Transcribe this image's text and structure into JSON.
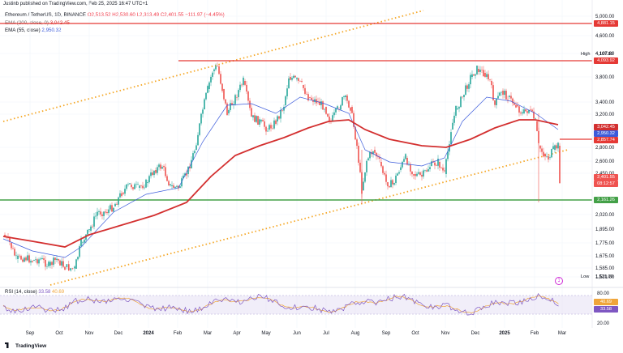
{
  "header": {
    "published": "Justinb published on TradingView.com, Feb 25, 2025 16:47 UTC+1"
  },
  "legend": {
    "symbol": "Ethereum / TetherUS, 1D, BINANCE",
    "ohlc": "O2,513.52 H2,530.60 L2,313.49 C2,401.55 −111.97 (−4.45%)",
    "ema200": "EMA (200, close, 0)",
    "ema200_value": "3,042.45",
    "ema55": "EMA (55, close)",
    "ema55_value": "2,950.32"
  },
  "rsi": {
    "label": "RSI (14, close)",
    "value1": "33.58",
    "value2": "40.69"
  },
  "price_axis": [
    "5,000.00",
    "4,600.00",
    "4,107.80",
    "3,800.00",
    "3,400.00",
    "3,200.00",
    "2,800.00",
    "2,600.00",
    "2,450.00",
    "2,020.00",
    "1,895.00",
    "1,775.00",
    "1,675.00",
    "1,585.00",
    "1,521.00"
  ],
  "rsi_axis": [
    "80.00",
    "20.00"
  ],
  "tags": {
    "t4881": "4,881.15",
    "t4093": "4,093.92",
    "t3042": "3,042.45",
    "t2950": "2,950.32",
    "t2857": "2,857.74",
    "t2401": "2,401.55",
    "timer": "08:12:57",
    "t2161": "2,161.26",
    "rsi1": "40.69",
    "rsi2": "33.58",
    "high_label": "High",
    "high_value": "4,107.80",
    "low_label": "Low",
    "low_value": "1,521.00"
  },
  "x_axis": [
    "Sep",
    "Oct",
    "Nov",
    "Dec",
    "2024",
    "Feb",
    "Mar",
    "Apr",
    "May",
    "Jun",
    "Jul",
    "Aug",
    "Sep",
    "Oct",
    "Nov",
    "Dec",
    "2025",
    "Feb",
    "Mar"
  ],
  "colors": {
    "up": "#26a69a",
    "down": "#ef5350",
    "ema200": "#d32f2f",
    "ema55": "#3b5bdb",
    "support": "#43a047",
    "resistance": "#e53935",
    "channel": "#f5a623",
    "rsi": "#7e57c2"
  },
  "brand": "TradingView"
}
